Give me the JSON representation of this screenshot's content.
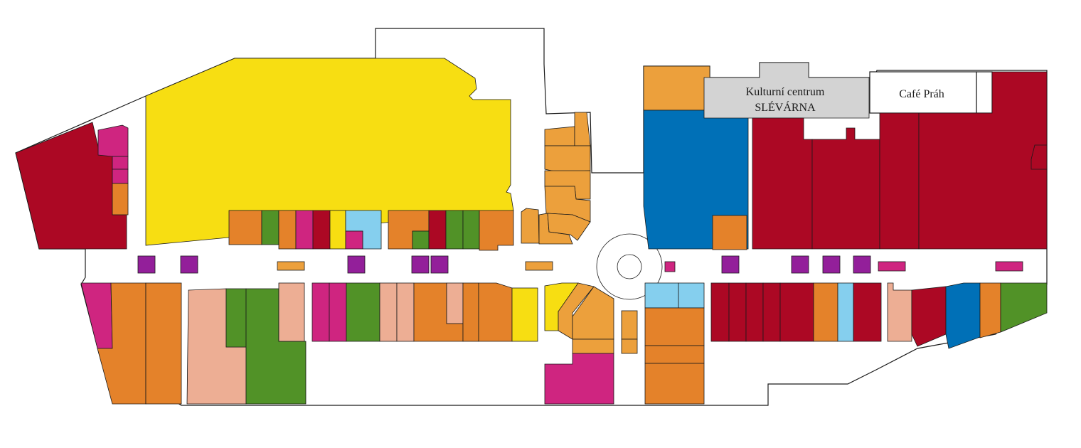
{
  "colors": {
    "yellow": "#f7de12",
    "crimson": "#ac0824",
    "magenta": "#cf2580",
    "orange": "#e4822a",
    "light_orange": "#eca03c",
    "green": "#519227",
    "blue": "#0070b7",
    "light_blue": "#85cfee",
    "salmon": "#edae94",
    "purple": "#931f9a",
    "gray": "#d3d3d3"
  },
  "labels": {
    "kulturni_line1": "Kulturní centrum",
    "kulturni_line2": "SLÉVÁRNA",
    "cafe": "Café Práh"
  }
}
